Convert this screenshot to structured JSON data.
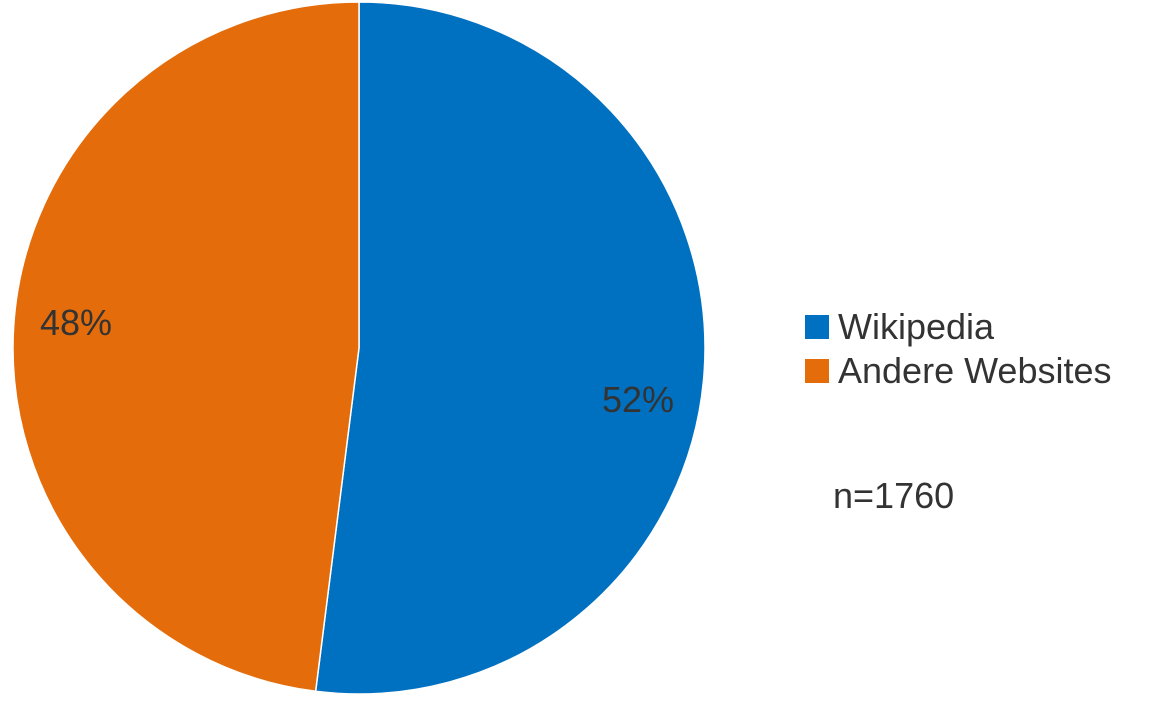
{
  "chart_data": {
    "type": "pie",
    "categories": [
      "Wikipedia",
      "Andere Websites"
    ],
    "values": [
      52,
      48
    ],
    "value_labels": [
      "52%",
      "48%"
    ],
    "colors": [
      "#0070c0",
      "#e46c0a"
    ],
    "legend_position": "right",
    "note": "n=1760"
  }
}
